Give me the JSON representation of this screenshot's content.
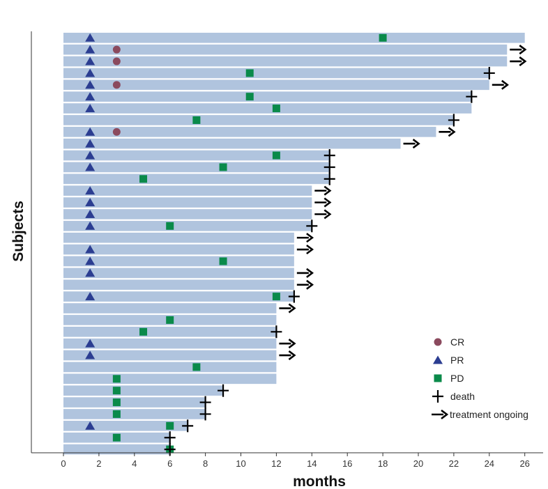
{
  "chart_data": {
    "type": "swimmer",
    "xlabel": "months",
    "ylabel": "Subjects",
    "xlim": [
      0,
      27.5
    ],
    "x_ticks": [
      0,
      2,
      4,
      6,
      8,
      10,
      12,
      14,
      16,
      18,
      20,
      22,
      24,
      26
    ],
    "bar_color": "#b0c4de",
    "legend": {
      "position": "bottom-right",
      "entries": [
        {
          "marker": "CR",
          "label": "CR",
          "color": "#8b4a5e"
        },
        {
          "marker": "PR",
          "label": "PR",
          "color": "#2b3d91"
        },
        {
          "marker": "PD",
          "label": "PD",
          "color": "#0a8a4a"
        },
        {
          "marker": "death",
          "label": "death",
          "color": "#000000"
        },
        {
          "marker": "ongoing",
          "label": "treatment ongoing",
          "color": "#000000"
        }
      ]
    },
    "subjects": [
      {
        "duration": 26,
        "PR": 1.5,
        "PD": 18
      },
      {
        "duration": 25,
        "PR": 1.5,
        "CR": 3,
        "ongoing": true
      },
      {
        "duration": 25,
        "PR": 1.5,
        "CR": 3,
        "ongoing": true
      },
      {
        "duration": 24,
        "PR": 1.5,
        "PD": 10.5,
        "death": 24
      },
      {
        "duration": 24,
        "PR": 1.5,
        "CR": 3,
        "ongoing": true
      },
      {
        "duration": 23,
        "PR": 1.5,
        "PD": 10.5,
        "death": 23
      },
      {
        "duration": 23,
        "PR": 1.5,
        "PD": 12
      },
      {
        "duration": 22,
        "PD": 7.5,
        "death": 22
      },
      {
        "duration": 21,
        "PR": 1.5,
        "CR": 3,
        "ongoing": true
      },
      {
        "duration": 19,
        "PR": 1.5,
        "ongoing": true
      },
      {
        "duration": 15,
        "PR": 1.5,
        "PD": 12,
        "death": 15
      },
      {
        "duration": 15,
        "PR": 1.5,
        "PD": 9,
        "death": 15
      },
      {
        "duration": 15,
        "PD": 4.5,
        "death": 15
      },
      {
        "duration": 14,
        "PR": 1.5,
        "ongoing": true
      },
      {
        "duration": 14,
        "PR": 1.5,
        "ongoing": true
      },
      {
        "duration": 14,
        "PR": 1.5,
        "ongoing": true
      },
      {
        "duration": 14,
        "PR": 1.5,
        "PD": 6,
        "death": 14
      },
      {
        "duration": 13,
        "ongoing": true
      },
      {
        "duration": 13,
        "PR": 1.5,
        "ongoing": true
      },
      {
        "duration": 13,
        "PR": 1.5,
        "PD": 9
      },
      {
        "duration": 13,
        "PR": 1.5,
        "ongoing": true
      },
      {
        "duration": 13,
        "ongoing": true
      },
      {
        "duration": 13,
        "PR": 1.5,
        "PD": 12,
        "death": 13
      },
      {
        "duration": 12,
        "ongoing": true
      },
      {
        "duration": 12,
        "PD": 6
      },
      {
        "duration": 12,
        "PD": 4.5,
        "death": 12
      },
      {
        "duration": 12,
        "PR": 1.5,
        "ongoing": true
      },
      {
        "duration": 12,
        "PR": 1.5,
        "ongoing": true
      },
      {
        "duration": 12,
        "PD": 7.5
      },
      {
        "duration": 12,
        "PD": 3
      },
      {
        "duration": 9,
        "PD": 3,
        "death": 9
      },
      {
        "duration": 8,
        "PD": 3,
        "death": 8
      },
      {
        "duration": 8,
        "PD": 3,
        "death": 8
      },
      {
        "duration": 7,
        "PR": 1.5,
        "PD": 6,
        "death": 7
      },
      {
        "duration": 6,
        "PD": 3,
        "death": 6
      },
      {
        "duration": 6,
        "PD": 6,
        "death": 6
      }
    ]
  }
}
